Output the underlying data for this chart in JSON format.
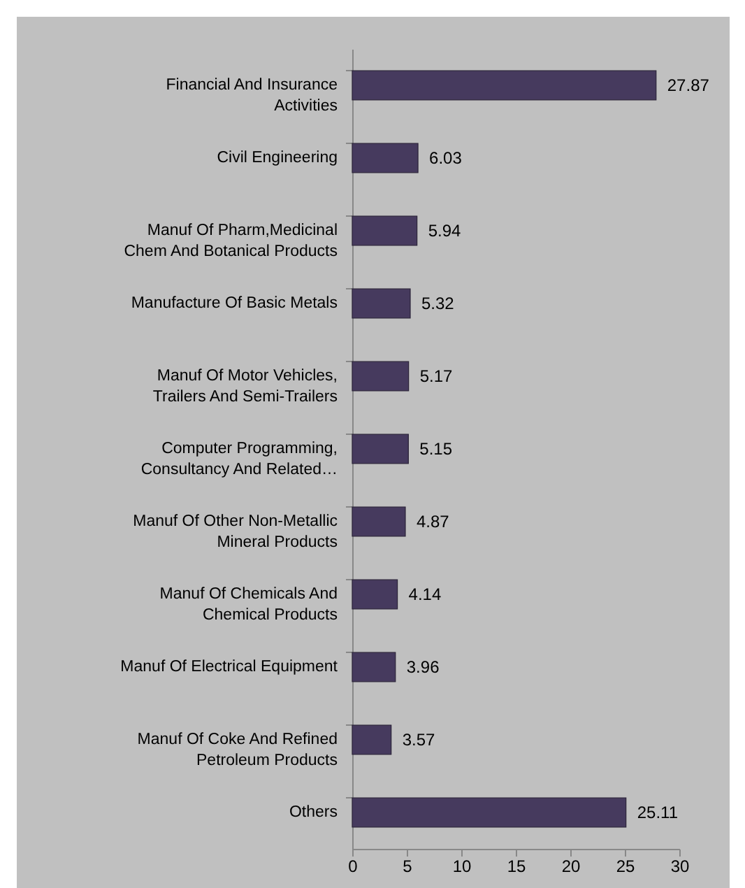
{
  "chart_data": {
    "type": "bar",
    "orientation": "horizontal",
    "categories": [
      "Financial And Insurance\nActivities",
      "Civil Engineering",
      "Manuf Of Pharm,Medicinal\nChem And Botanical Products",
      "Manufacture Of Basic Metals",
      "Manuf Of Motor Vehicles,\nTrailers And Semi-Trailers",
      "Computer Programming,\nConsultancy And Related…",
      "Manuf Of Other Non-Metallic\nMineral Products",
      "Manuf Of Chemicals And\nChemical Products",
      "Manuf Of Electrical Equipment",
      "Manuf Of Coke And Refined\nPetroleum Products",
      "Others"
    ],
    "values": [
      27.87,
      6.03,
      5.94,
      5.32,
      5.17,
      5.15,
      4.87,
      4.14,
      3.96,
      3.57,
      25.11
    ],
    "color": "#463a5e",
    "xlim": [
      0,
      30
    ],
    "xticks": [
      0,
      5,
      10,
      15,
      20,
      25,
      30
    ],
    "data_labels": true,
    "grid": false
  }
}
